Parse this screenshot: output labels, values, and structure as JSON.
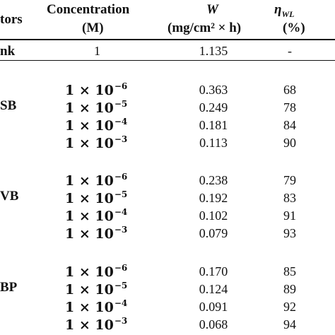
{
  "header": {
    "inhibitors": "tors",
    "concentration_line1": "Concentration",
    "concentration_line2": "(M)",
    "w_line1": "W",
    "w_line2": "(mg/cm² × h)",
    "eta_symbol": "η",
    "eta_sub": "WL",
    "eta_line2": "(%)"
  },
  "blank": {
    "label": "nk",
    "concentration": "1",
    "w": "1.135",
    "eta": "-"
  },
  "groups": [
    {
      "label": "SB",
      "rows": [
        {
          "base": "1 × 10",
          "exp": "−6",
          "w": "0.363",
          "eta": "68"
        },
        {
          "base": "1 × 10",
          "exp": "−5",
          "w": "0.249",
          "eta": "78"
        },
        {
          "base": "1 × 10",
          "exp": "−4",
          "w": "0.181",
          "eta": "84"
        },
        {
          "base": "1 × 10",
          "exp": "−3",
          "w": "0.113",
          "eta": "90"
        }
      ]
    },
    {
      "label": "VB",
      "rows": [
        {
          "base": "1 × 10",
          "exp": "−6",
          "w": "0.238",
          "eta": "79"
        },
        {
          "base": "1 × 10",
          "exp": "−5",
          "w": "0.192",
          "eta": "83"
        },
        {
          "base": "1 × 10",
          "exp": "−4",
          "w": "0.102",
          "eta": "91"
        },
        {
          "base": "1 × 10",
          "exp": "−3",
          "w": "0.079",
          "eta": "93"
        }
      ]
    },
    {
      "label": "BP",
      "rows": [
        {
          "base": "1 × 10",
          "exp": "−6",
          "w": "0.170",
          "eta": "85"
        },
        {
          "base": "1 × 10",
          "exp": "−5",
          "w": "0.124",
          "eta": "89"
        },
        {
          "base": "1 × 10",
          "exp": "−4",
          "w": "0.091",
          "eta": "92"
        },
        {
          "base": "1 × 10",
          "exp": "−3",
          "w": "0.068",
          "eta": "94"
        }
      ]
    }
  ]
}
